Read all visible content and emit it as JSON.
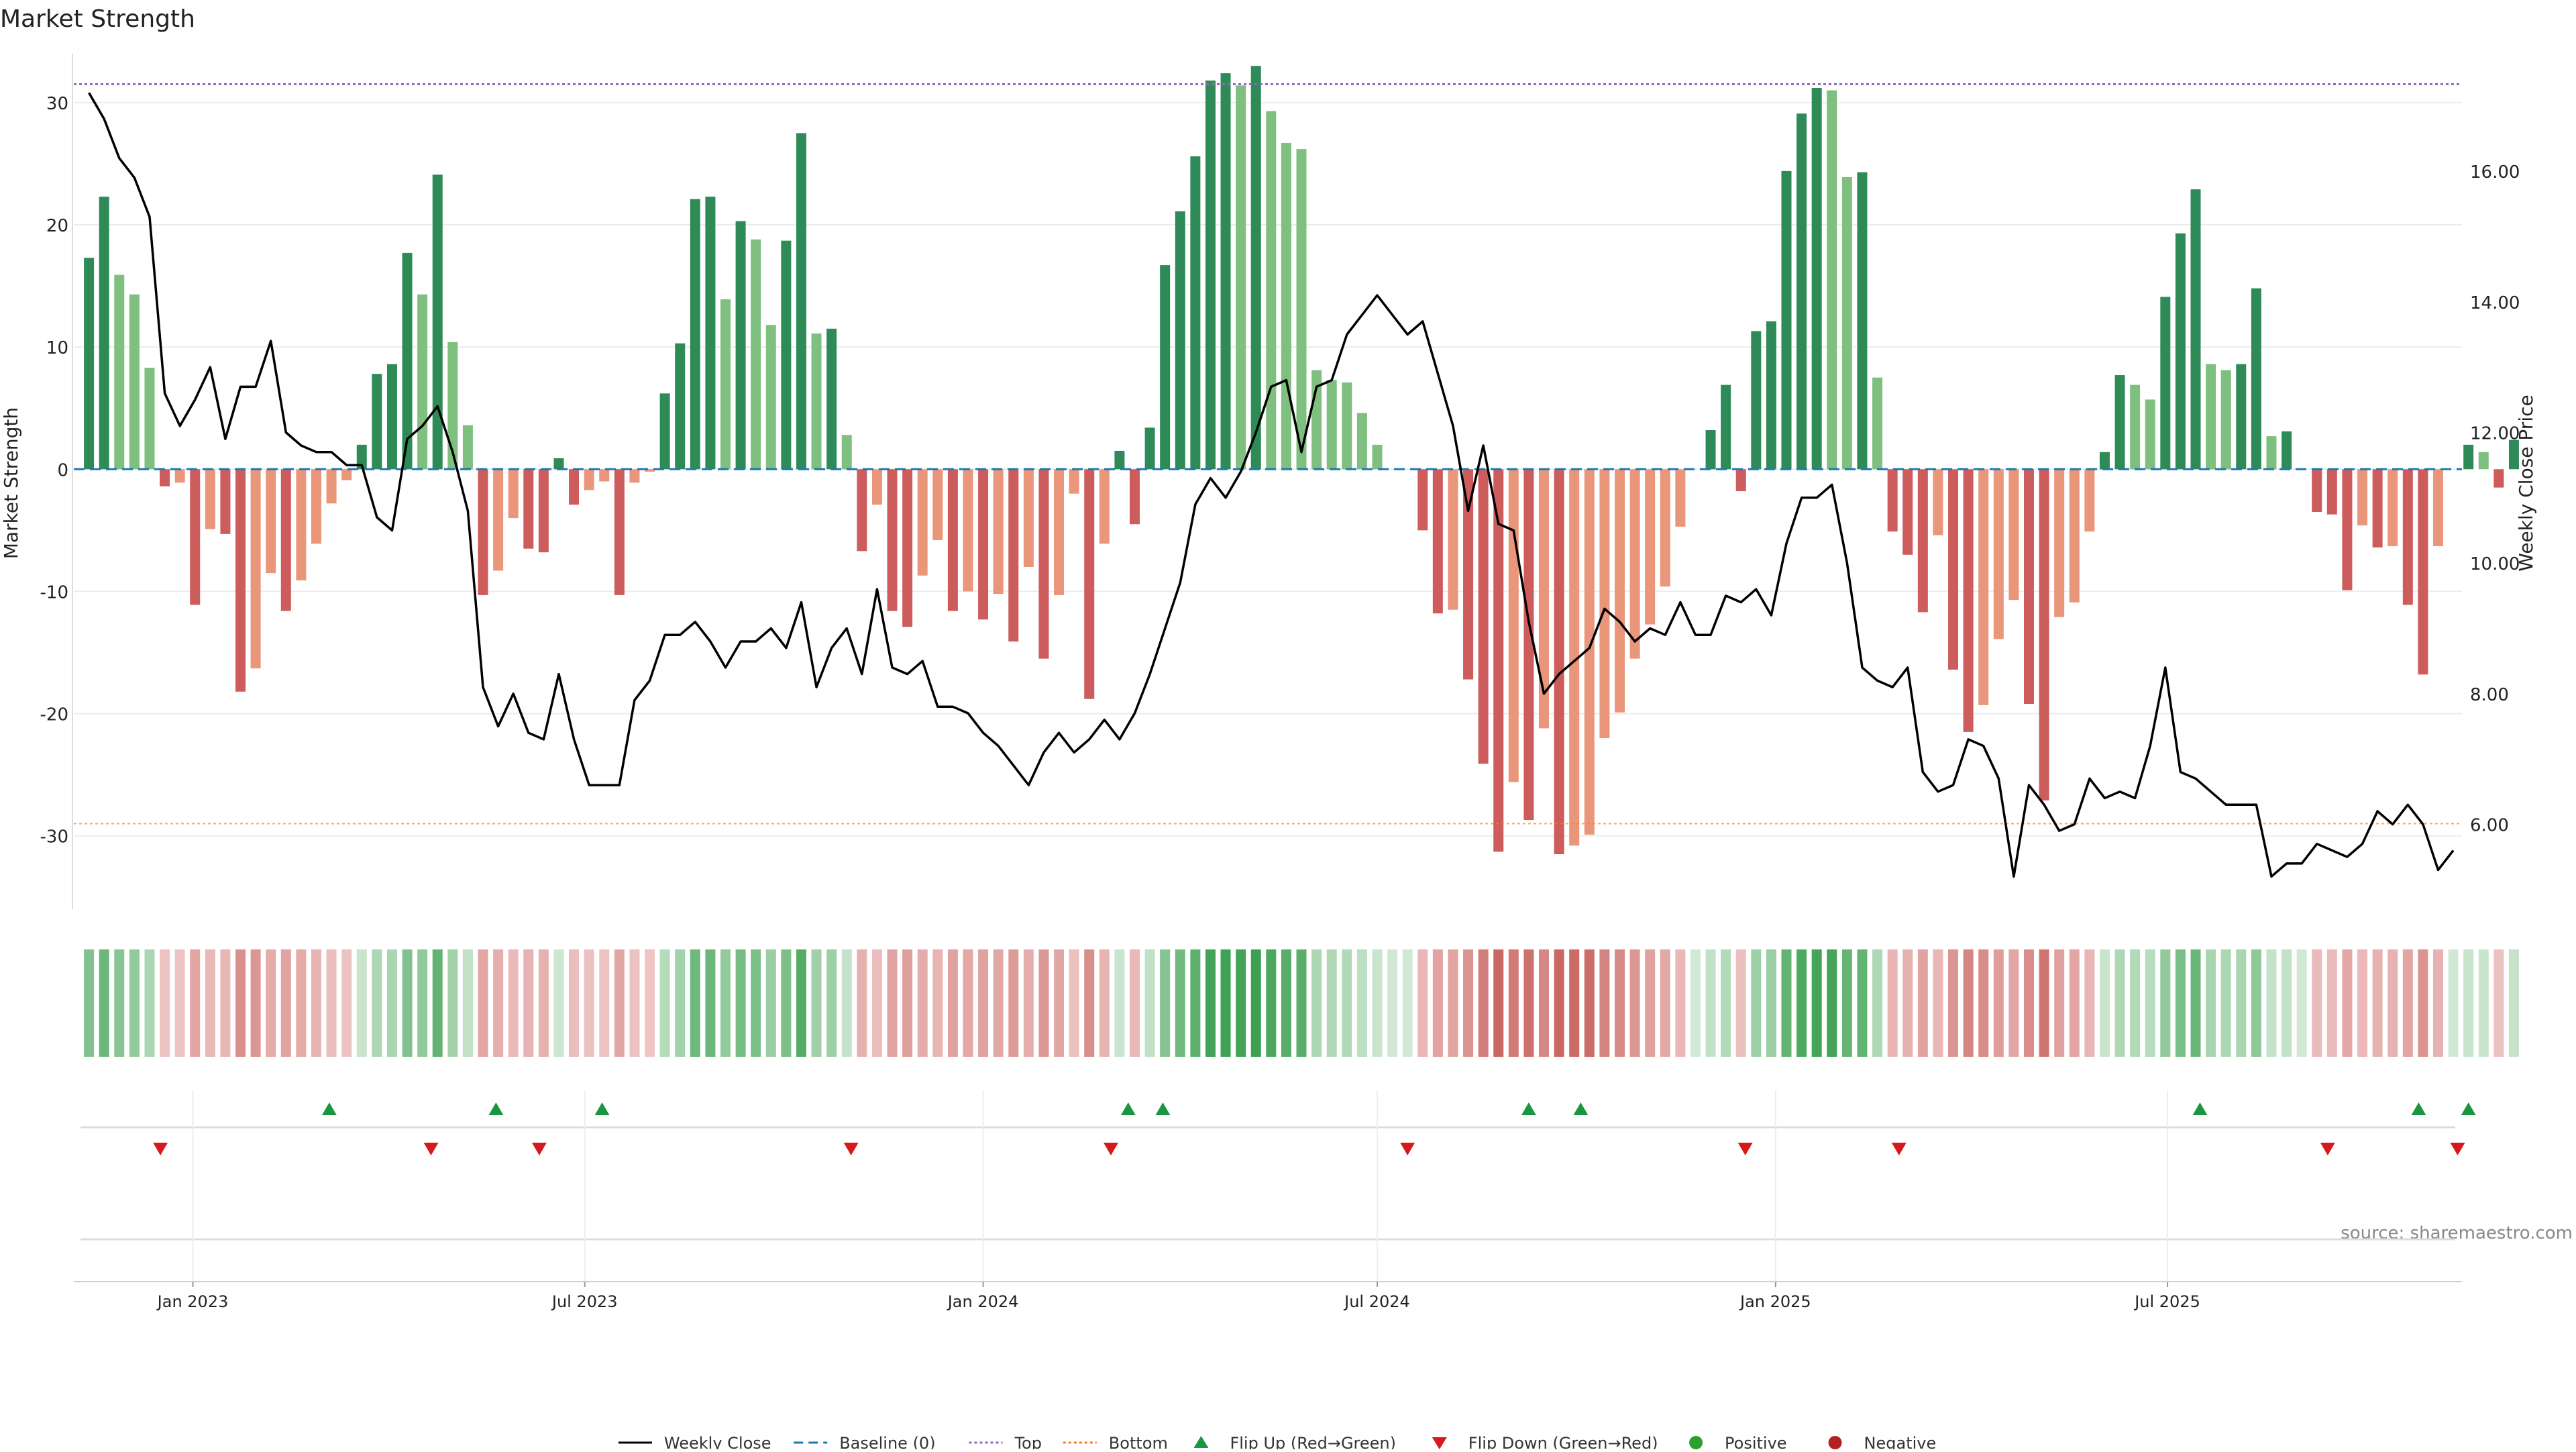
{
  "chart_data": {
    "title": "Market Strength",
    "source": "source: sharemaestro.com",
    "left_axis": {
      "label": "Market Strength",
      "ylim": [
        -36,
        34
      ],
      "ticks": [
        30,
        20,
        10,
        0,
        -10,
        -20,
        -30
      ]
    },
    "right_axis": {
      "label": "Weekly Close Price",
      "ylim": [
        4.7,
        17.8
      ],
      "ticks": [
        "16.00",
        "14.00",
        "12.00",
        "10.00",
        "8.00",
        "6.00"
      ]
    },
    "x_axis": {
      "range_days": [
        -7,
        1096
      ],
      "start_date": "2022-11-14",
      "ticks": [
        {
          "label": "Jan 2023",
          "days": 48
        },
        {
          "label": "Jul 2023",
          "days": 229
        },
        {
          "label": "Jan 2024",
          "days": 413
        },
        {
          "label": "Jul 2024",
          "days": 595
        },
        {
          "label": "Jan 2025",
          "days": 779
        },
        {
          "label": "Jul 2025",
          "days": 960
        }
      ]
    },
    "top_level": 31.5,
    "bottom_level": -29,
    "colors": {
      "strong_green": "#2e8b57",
      "light_green": "#7fbf7f",
      "strong_red": "#cd5c5c",
      "light_red": "#e9967a",
      "price_line": "#000000",
      "baseline": "#1f77b4",
      "top": "#9467bd",
      "bottom": "#ff7f0e",
      "flip_up": "#1a9641",
      "flip_down": "#d7191c",
      "positive": "#2ca02c",
      "negative": "#b22222"
    },
    "series": [
      {
        "name": "Market Strength",
        "values": [
          17.3,
          22.3,
          15.9,
          14.3,
          8.3,
          -1.4,
          -1.1,
          -11.1,
          -4.9,
          -5.3,
          -18.2,
          -16.3,
          -8.5,
          -11.6,
          -9.1,
          -6.1,
          -2.8,
          -0.9,
          2.0,
          7.8,
          8.6,
          17.7,
          14.3,
          24.1,
          10.4,
          3.6,
          -10.3,
          -8.3,
          -4.0,
          -6.5,
          -6.8,
          0.9,
          -2.9,
          -1.7,
          -1.0,
          -10.3,
          -1.1,
          -0.2,
          6.2,
          10.3,
          22.1,
          22.3,
          13.9,
          20.3,
          18.8,
          11.8,
          18.7,
          27.5,
          11.1,
          11.5,
          2.8,
          -6.7,
          -2.9,
          -11.6,
          -12.9,
          -8.7,
          -5.8,
          -11.6,
          -10.0,
          -12.3,
          -10.2,
          -14.1,
          -8.0,
          -15.5,
          -10.3,
          -2.0,
          -18.8,
          -6.1,
          1.5,
          -4.5,
          3.4,
          16.7,
          21.1,
          25.6,
          31.8,
          32.4,
          31.4,
          33.0,
          29.3,
          26.7,
          26.2,
          8.1,
          7.3,
          7.1,
          4.6,
          2.0,
          0,
          0,
          -5.0,
          -11.8,
          -11.5,
          -17.2,
          -24.1,
          -31.3,
          -25.6,
          -28.7,
          -21.2,
          -31.5,
          -30.8,
          -29.9,
          -22.0,
          -19.9,
          -15.5,
          -12.7,
          -9.6,
          -4.7,
          0,
          3.2,
          6.9,
          -1.8,
          11.3,
          12.1,
          24.4,
          29.1,
          31.2,
          31.0,
          23.9,
          24.3,
          7.5,
          -5.1,
          -7.0,
          -11.7,
          -5.4,
          -16.4,
          -21.5,
          -19.3,
          -13.9,
          -10.7,
          -19.2,
          -27.1,
          -12.1,
          -10.9,
          -5.1,
          1.4,
          7.7,
          6.9,
          5.7,
          14.1,
          19.3,
          22.9,
          8.6,
          8.1,
          8.6,
          14.8,
          2.7,
          3.1,
          0,
          -3.5,
          -3.7,
          -9.9,
          -4.6,
          -6.4,
          -6.3,
          -11.1,
          -16.8,
          -6.3,
          0,
          2.0,
          1.4,
          -1.5,
          2.4
        ]
      },
      {
        "name": "Weekly Close",
        "values": [
          17.2,
          16.8,
          16.2,
          15.9,
          15.3,
          12.6,
          12.1,
          12.5,
          13.0,
          11.9,
          12.7,
          12.7,
          13.4,
          12.0,
          11.8,
          11.7,
          11.7,
          11.5,
          11.5,
          10.7,
          10.5,
          11.9,
          12.1,
          12.4,
          11.7,
          10.8,
          8.1,
          7.5,
          8.0,
          7.4,
          7.3,
          8.3,
          7.3,
          6.6,
          6.6,
          6.6,
          7.9,
          8.2,
          8.9,
          8.9,
          9.1,
          8.8,
          8.4,
          8.8,
          8.8,
          9.0,
          8.7,
          9.4,
          8.1,
          8.7,
          9.0,
          8.3,
          9.6,
          8.4,
          8.3,
          8.5,
          7.8,
          7.8,
          7.7,
          7.4,
          7.2,
          6.9,
          6.6,
          7.1,
          7.4,
          7.1,
          7.3,
          7.6,
          7.3,
          7.7,
          8.3,
          9.0,
          9.7,
          10.9,
          11.3,
          11.0,
          11.4,
          12.0,
          12.7,
          12.8,
          11.7,
          12.7,
          12.8,
          13.5,
          13.8,
          14.1,
          13.8,
          13.5,
          13.7,
          12.9,
          12.1,
          10.8,
          11.8,
          10.6,
          10.5,
          9.1,
          8.0,
          8.3,
          8.5,
          8.7,
          9.3,
          9.1,
          8.8,
          9.0,
          8.9,
          9.4,
          8.9,
          8.9,
          9.5,
          9.4,
          9.6,
          9.2,
          10.3,
          11.0,
          11.0,
          11.2,
          10.0,
          8.4,
          8.2,
          8.1,
          8.4,
          6.8,
          6.5,
          6.6,
          7.3,
          7.2,
          6.7,
          5.2,
          6.6,
          6.3,
          5.9,
          6.0,
          6.7,
          6.4,
          6.5,
          6.4,
          7.2,
          8.4,
          6.8,
          6.7,
          6.5,
          6.3,
          6.3,
          6.3,
          5.2,
          5.4,
          5.4,
          5.7,
          5.6,
          5.5,
          5.7,
          6.2,
          6.0,
          6.3,
          6.0,
          5.3,
          5.6
        ]
      }
    ],
    "heat_strip": {
      "note": "shaded by Market Strength"
    },
    "flips": {
      "up_days": [
        111,
        188,
        237,
        480,
        496,
        665,
        689,
        975,
        1076,
        1099
      ],
      "down_days": [
        33,
        158,
        208,
        352,
        472,
        609,
        765,
        836,
        1034,
        1094
      ]
    },
    "legend": {
      "position": "bottom-center",
      "items": [
        {
          "label": "Weekly Close",
          "kind": "line"
        },
        {
          "label": "Baseline (0)",
          "kind": "dashed"
        },
        {
          "label": "Top",
          "kind": "dotted"
        },
        {
          "label": "Bottom",
          "kind": "dotted"
        },
        {
          "label": "Flip Up (Red→Green)",
          "kind": "triangle-up"
        },
        {
          "label": "Flip Down (Green→Red)",
          "kind": "triangle-down"
        },
        {
          "label": "Positive",
          "kind": "dot"
        },
        {
          "label": "Negative",
          "kind": "dot"
        }
      ]
    }
  }
}
